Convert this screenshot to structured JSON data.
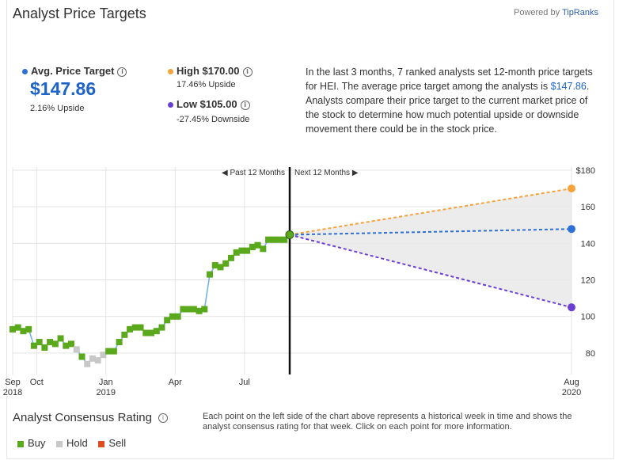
{
  "header": {
    "title": "Analyst Price Targets",
    "powered_prefix": "Powered by",
    "powered_brand": "TipRanks"
  },
  "summary": {
    "avg_label": "Avg. Price Target",
    "avg_value": "$147.86",
    "avg_sub": "2.16% Upside",
    "high_label": "High $170.00",
    "high_sub": "17.46% Upside",
    "low_label": "Low $105.00",
    "low_sub": "-27.45% Downside",
    "colors": {
      "avg": "#2f6fd8",
      "high": "#f5a33a",
      "low": "#6b3fd1"
    }
  },
  "description": {
    "part1": "In the last 3 months, 7 ranked analysts set 12-month price targets for HEI. The average price target among the analysts is ",
    "highlight": "$147.86",
    "part2": ". Analysts compare their price target to the current market price of the stock to determine how much potential upside or downside movement there could be in the stock price."
  },
  "chart_data": {
    "type": "line",
    "past_label": "Past 12 Months",
    "next_label": "Next 12 Months",
    "ylim": [
      70,
      180
    ],
    "y_ticks": [
      {
        "v": 180,
        "label": "$180"
      },
      {
        "v": 160,
        "label": "160"
      },
      {
        "v": 140,
        "label": "140"
      },
      {
        "v": 120,
        "label": "120"
      },
      {
        "v": 100,
        "label": "100"
      },
      {
        "v": 80,
        "label": "80"
      }
    ],
    "x_ticks": [
      {
        "w": 0,
        "l1": "Sep",
        "l2": "2018"
      },
      {
        "w": 4.5,
        "l1": "Oct",
        "l2": ""
      },
      {
        "w": 17.5,
        "l1": "Jan",
        "l2": "2019"
      },
      {
        "w": 30.5,
        "l1": "Apr",
        "l2": ""
      },
      {
        "w": 43.5,
        "l1": "Jul",
        "l2": ""
      },
      {
        "w": 104,
        "l1": "Aug",
        "l2": "2020"
      }
    ],
    "current": {
      "w": 52,
      "value": 144.7
    },
    "forecast": {
      "w": 104,
      "high": 170.0,
      "avg": 147.86,
      "low": 105.0
    },
    "weekly": {
      "weeks": [
        0,
        1,
        2,
        3,
        4,
        5,
        6,
        7,
        8,
        9,
        10,
        11,
        12,
        13,
        14,
        15,
        16,
        17,
        18,
        19,
        20,
        21,
        22,
        23,
        24,
        25,
        26,
        27,
        28,
        29,
        30,
        31,
        32,
        33,
        34,
        35,
        36,
        37,
        38,
        39,
        40,
        41,
        42,
        43,
        44,
        45,
        46,
        47,
        48,
        49,
        50,
        51,
        52
      ],
      "price": [
        93,
        94,
        92,
        93,
        84,
        86,
        83,
        86,
        85,
        88,
        84,
        85,
        82,
        78,
        74,
        77,
        76,
        79,
        81,
        81,
        86,
        90,
        93,
        94,
        94,
        91,
        91,
        92,
        94,
        98,
        100,
        100,
        104,
        104,
        104,
        103,
        104,
        123,
        128,
        127,
        129,
        132,
        135,
        136,
        136,
        138,
        139,
        137,
        142,
        142,
        142,
        142,
        144.7
      ],
      "rating": [
        "buy",
        "buy",
        "buy",
        "buy",
        "buy",
        "buy",
        "buy",
        "buy",
        "buy",
        "buy",
        "buy",
        "buy",
        "hold",
        "buy",
        "hold",
        "hold",
        "hold",
        "hold",
        "buy",
        "buy",
        "buy",
        "buy",
        "buy",
        "buy",
        "buy",
        "buy",
        "buy",
        "buy",
        "buy",
        "buy",
        "buy",
        "buy",
        "buy",
        "buy",
        "buy",
        "buy",
        "buy",
        "buy",
        "buy",
        "buy",
        "buy",
        "buy",
        "buy",
        "buy",
        "buy",
        "buy",
        "buy",
        "buy",
        "buy",
        "buy",
        "buy",
        "buy",
        "buy"
      ]
    },
    "colors": {
      "buy": "#5aa81c",
      "hold": "#c8c8c8",
      "sell": "#e04a1c",
      "price_line": "#6ab0ea",
      "grid": "#e3e3e3"
    }
  },
  "consensus": {
    "title": "Analyst Consensus Rating",
    "description": "Each point on the left side of the chart above represents a historical week in time and shows the analyst consensus rating for that week. Click on each point for more information.",
    "legend": [
      {
        "label": "Buy",
        "color": "#5aa81c"
      },
      {
        "label": "Hold",
        "color": "#c8c8c8"
      },
      {
        "label": "Sell",
        "color": "#e04a1c"
      }
    ]
  }
}
